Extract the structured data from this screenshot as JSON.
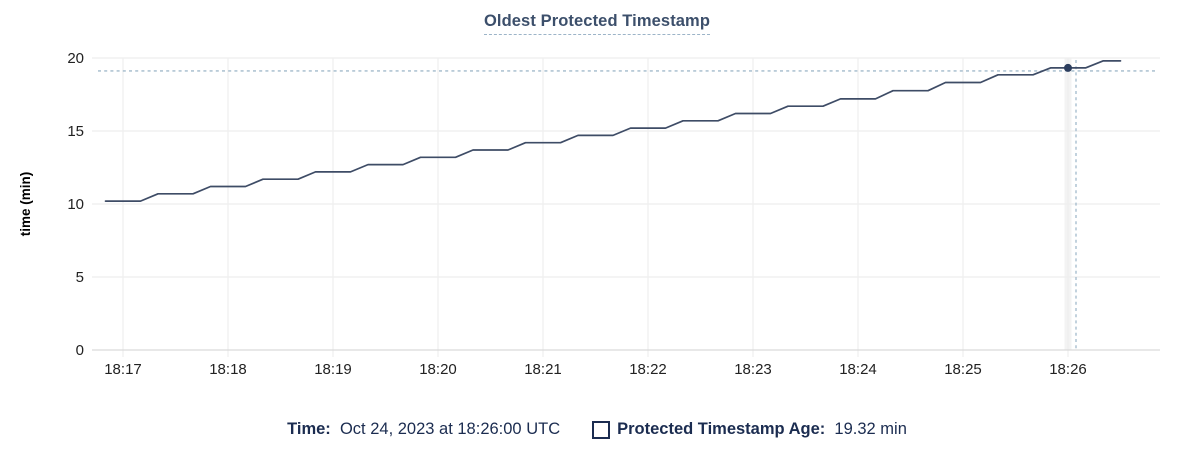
{
  "title": "Oldest Protected Timestamp",
  "colors": {
    "line": "#3e4c66",
    "dot": "#2c3e5e",
    "grid": "#eeeeee",
    "axis_line": "#d9d9d9",
    "hover_band": "#f3f3f3",
    "crosshair": "#a2bacb",
    "tick_text": "#222222",
    "axis_title_text": "#000000",
    "title_text": "#3c4f6b",
    "legend_text": "#1b2c50"
  },
  "legend": {
    "time_label": "Time: ",
    "time_value": " Oct 24, 2023 at 18:26:00 UTC",
    "series_label": "Protected Timestamp Age: ",
    "series_value": " 19.32 min"
  },
  "chart_data": {
    "type": "line",
    "title": "Oldest Protected Timestamp",
    "xlabel": "",
    "ylabel": "time (min)",
    "ylim": [
      0,
      20
    ],
    "yticks": [
      0,
      5,
      10,
      15,
      20
    ],
    "x_tick_labels": [
      "18:17",
      "18:18",
      "18:19",
      "18:20",
      "18:21",
      "18:22",
      "18:23",
      "18:24",
      "18:25",
      "18:26"
    ],
    "grid": true,
    "legend_position": "bottom",
    "series": [
      {
        "name": "Protected Timestamp Age",
        "unit": "min",
        "points": [
          [
            "18:16:50",
            10.2
          ],
          [
            "18:17:00",
            10.2
          ],
          [
            "18:17:10",
            10.2
          ],
          [
            "18:17:20",
            10.7
          ],
          [
            "18:17:30",
            10.7
          ],
          [
            "18:17:40",
            10.7
          ],
          [
            "18:17:50",
            11.2
          ],
          [
            "18:18:00",
            11.2
          ],
          [
            "18:18:10",
            11.2
          ],
          [
            "18:18:20",
            11.7
          ],
          [
            "18:18:30",
            11.7
          ],
          [
            "18:18:40",
            11.7
          ],
          [
            "18:18:50",
            12.2
          ],
          [
            "18:19:00",
            12.2
          ],
          [
            "18:19:10",
            12.2
          ],
          [
            "18:19:20",
            12.7
          ],
          [
            "18:19:30",
            12.7
          ],
          [
            "18:19:40",
            12.7
          ],
          [
            "18:19:50",
            13.2
          ],
          [
            "18:20:00",
            13.2
          ],
          [
            "18:20:10",
            13.2
          ],
          [
            "18:20:20",
            13.7
          ],
          [
            "18:20:30",
            13.7
          ],
          [
            "18:20:40",
            13.7
          ],
          [
            "18:20:50",
            14.2
          ],
          [
            "18:21:00",
            14.2
          ],
          [
            "18:21:10",
            14.2
          ],
          [
            "18:21:20",
            14.7
          ],
          [
            "18:21:30",
            14.7
          ],
          [
            "18:21:40",
            14.7
          ],
          [
            "18:21:50",
            15.2
          ],
          [
            "18:22:00",
            15.2
          ],
          [
            "18:22:10",
            15.2
          ],
          [
            "18:22:20",
            15.7
          ],
          [
            "18:22:30",
            15.7
          ],
          [
            "18:22:40",
            15.7
          ],
          [
            "18:22:50",
            16.2
          ],
          [
            "18:23:00",
            16.2
          ],
          [
            "18:23:10",
            16.2
          ],
          [
            "18:23:20",
            16.7
          ],
          [
            "18:23:30",
            16.7
          ],
          [
            "18:23:40",
            16.7
          ],
          [
            "18:23:50",
            17.2
          ],
          [
            "18:24:00",
            17.2
          ],
          [
            "18:24:10",
            17.2
          ],
          [
            "18:24:20",
            17.76
          ],
          [
            "18:24:30",
            17.76
          ],
          [
            "18:24:40",
            17.76
          ],
          [
            "18:24:50",
            18.32
          ],
          [
            "18:25:00",
            18.32
          ],
          [
            "18:25:10",
            18.32
          ],
          [
            "18:25:20",
            18.85
          ],
          [
            "18:25:30",
            18.85
          ],
          [
            "18:25:40",
            18.85
          ],
          [
            "18:25:50",
            19.32
          ],
          [
            "18:26:00",
            19.32
          ],
          [
            "18:26:10",
            19.32
          ],
          [
            "18:26:20",
            19.8
          ],
          [
            "18:26:30",
            19.8
          ]
        ]
      }
    ],
    "hover": {
      "t": "18:26:00",
      "value": 19.32,
      "time_label": "Oct 24, 2023 at 18:26:00 UTC",
      "value_label": "19.32 min"
    }
  }
}
